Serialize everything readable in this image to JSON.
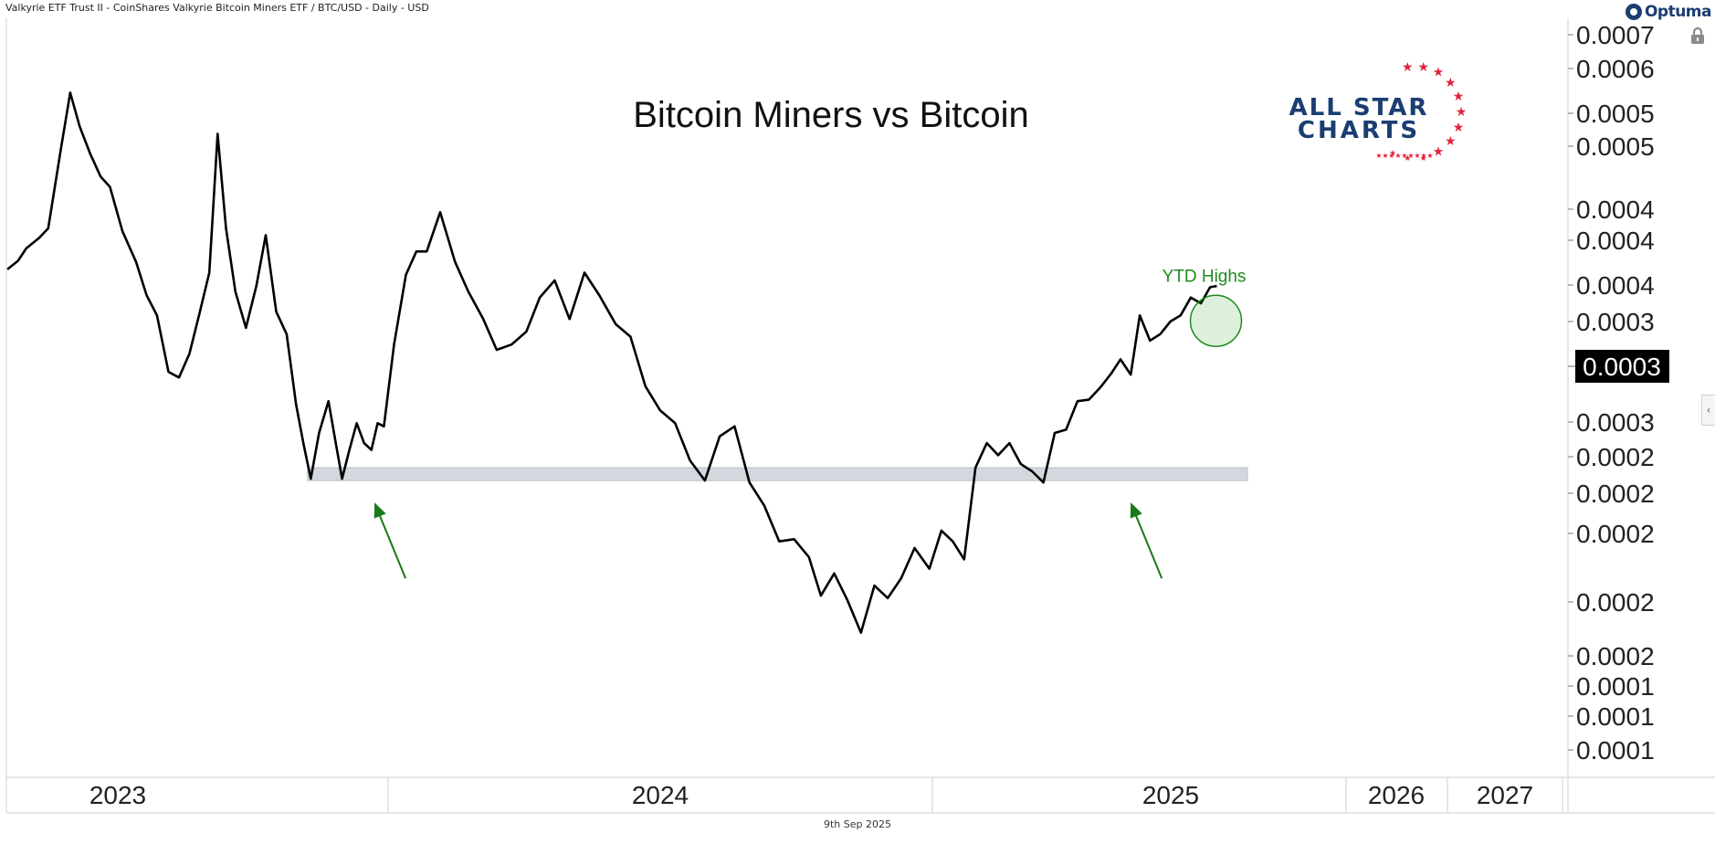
{
  "header": {
    "instrument": "Valkyrie ETF Trust II - CoinShares Valkyrie Bitcoin Miners ETF / BTC/USD - Daily - USD",
    "brand": "Optuma",
    "lock_icon": "lock-icon",
    "side_toggle_icon": "chevron-left-icon"
  },
  "footer": {
    "date": "9th Sep 2025"
  },
  "logo": {
    "line1": "ALL STAR",
    "line2": "CHARTS",
    "star_color": "#e0233b",
    "text_color": "#1b3d72"
  },
  "annotations": {
    "ytd_label": "YTD Highs",
    "ytd_color": "#1f8a1f",
    "support_band_color": "#d3d8df",
    "arrow_color": "#1a7a1a"
  },
  "chart_data": {
    "type": "line",
    "title": "Bitcoin Miners vs Bitcoin",
    "xlabel": "",
    "ylabel": "",
    "y_scale": "log",
    "x_tick_labels": [
      "2023",
      "2024",
      "2025",
      "2026",
      "2027"
    ],
    "y_tick_labels": [
      "0.0007",
      "0.0006",
      "0.0005",
      "0.0005",
      "0.0004",
      "0.0004",
      "0.0004",
      "0.0003",
      "0.0003",
      "0.0002",
      "0.0002",
      "0.0002",
      "0.0002",
      "0.0002",
      "0.0001",
      "0.0001",
      "0.0001"
    ],
    "last_value_label": "0.0003",
    "grid": false,
    "support_zone": {
      "y_range": [
        0.000205,
        0.000212
      ],
      "x_range": [
        "2023-10-16",
        "2025-10-06"
      ]
    },
    "highlight": {
      "label": "YTD Highs",
      "x": "2025-09-09",
      "y": 0.000315
    },
    "arrows": [
      {
        "x": "2023-12-19",
        "y": 0.000204,
        "color": "#1a7a1a"
      },
      {
        "x": "2025-06-25",
        "y": 0.000204,
        "color": "#1a7a1a"
      }
    ],
    "series": [
      {
        "color": "#000000",
        "x": [
          "2023-01-02",
          "2023-01-12",
          "2023-01-20",
          "2023-02-01",
          "2023-02-10",
          "2023-02-22",
          "2023-03-03",
          "2023-03-12",
          "2023-03-22",
          "2023-04-01",
          "2023-04-10",
          "2023-04-22",
          "2023-05-05",
          "2023-05-15",
          "2023-05-25",
          "2023-06-05",
          "2023-06-15",
          "2023-06-25",
          "2023-07-05",
          "2023-07-14",
          "2023-07-22",
          "2023-07-30",
          "2023-08-08",
          "2023-08-18",
          "2023-08-28",
          "2023-09-06",
          "2023-09-16",
          "2023-09-26",
          "2023-10-05",
          "2023-10-12",
          "2023-10-19",
          "2023-10-27",
          "2023-11-05",
          "2023-11-12",
          "2023-11-18",
          "2023-11-25",
          "2023-12-02",
          "2023-12-09",
          "2023-12-16",
          "2023-12-22",
          "2023-12-28",
          "2024-01-05",
          "2024-01-13",
          "2024-01-20",
          "2024-01-27",
          "2024-02-05",
          "2024-02-15",
          "2024-02-24",
          "2024-03-05",
          "2024-03-14",
          "2024-03-24",
          "2024-04-03",
          "2024-04-12",
          "2024-04-22",
          "2024-05-02",
          "2024-05-12",
          "2024-05-22",
          "2024-06-02",
          "2024-06-12",
          "2024-06-22",
          "2024-07-02",
          "2024-07-12",
          "2024-07-22",
          "2024-08-01",
          "2024-08-11",
          "2024-08-21",
          "2024-08-31",
          "2024-09-10",
          "2024-09-20",
          "2024-09-30",
          "2024-10-10",
          "2024-10-18",
          "2024-10-27",
          "2024-11-05",
          "2024-11-14",
          "2024-11-23",
          "2024-12-02",
          "2024-12-11",
          "2024-12-20",
          "2024-12-30",
          "2025-01-09",
          "2025-01-19",
          "2025-01-29",
          "2025-02-08",
          "2025-02-18",
          "2025-02-28",
          "2025-03-10",
          "2025-03-20",
          "2025-03-30",
          "2025-04-09",
          "2025-04-19",
          "2025-04-29",
          "2025-05-09",
          "2025-05-19",
          "2025-05-29",
          "2025-06-08",
          "2025-06-16",
          "2025-06-25",
          "2025-07-03",
          "2025-07-12",
          "2025-07-21",
          "2025-07-30",
          "2025-08-08",
          "2025-08-17",
          "2025-08-26",
          "2025-09-03",
          "2025-09-09"
        ],
        "y": [
          0.000355,
          0.000363,
          0.000375,
          0.000385,
          0.000395,
          0.000485,
          0.000562,
          0.000515,
          0.00048,
          0.000452,
          0.00044,
          0.000392,
          0.000362,
          0.000332,
          0.000315,
          0.000272,
          0.000268,
          0.000285,
          0.000318,
          0.000352,
          0.000505,
          0.000395,
          0.000335,
          0.000305,
          0.00034,
          0.000388,
          0.000318,
          0.0003,
          0.00025,
          0.000226,
          0.000206,
          0.000232,
          0.000252,
          0.000226,
          0.000206,
          0.000222,
          0.000238,
          0.000226,
          0.000222,
          0.000238,
          0.000236,
          0.000292,
          0.00035,
          0.000372,
          0.000372,
          0.000412,
          0.000362,
          0.000335,
          0.000312,
          0.000288,
          0.000292,
          0.000302,
          0.00033,
          0.000345,
          0.000312,
          0.000352,
          0.000332,
          0.000308,
          0.000298,
          0.000262,
          0.000246,
          0.000238,
          0.000216,
          0.000205,
          0.00023,
          0.000236,
          0.000204,
          0.000192,
          0.000175,
          0.000176,
          0.000168,
          0.000152,
          0.000161,
          0.00015,
          0.000138,
          0.000156,
          0.000151,
          0.000159,
          0.000172,
          0.000163,
          0.00018,
          0.000175,
          0.000167,
          0.000212,
          0.000226,
          0.000219,
          0.000226,
          0.000214,
          0.00021,
          0.000204,
          0.000232,
          0.000234,
          0.000252,
          0.000253,
          0.000261,
          0.000271,
          0.000281,
          0.00027,
          0.000315,
          0.000295,
          0.0003,
          0.00031,
          0.000315,
          0.00033,
          0.000325,
          0.000339,
          0.00034
        ]
      }
    ]
  }
}
